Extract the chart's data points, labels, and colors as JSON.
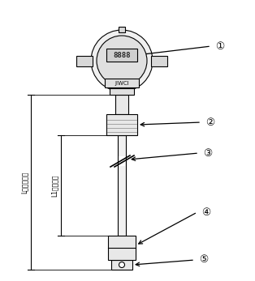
{
  "bg_color": "#ffffff",
  "line_color": "#000000",
  "labels": {
    "1": "①",
    "2": "②",
    "3": "③",
    "4": "④",
    "5": "⑤"
  },
  "dim_label_left": "L导杆总长度",
  "dim_label_mid": "L1测量范围",
  "figsize": [
    3.14,
    3.47
  ],
  "dpi": 100
}
